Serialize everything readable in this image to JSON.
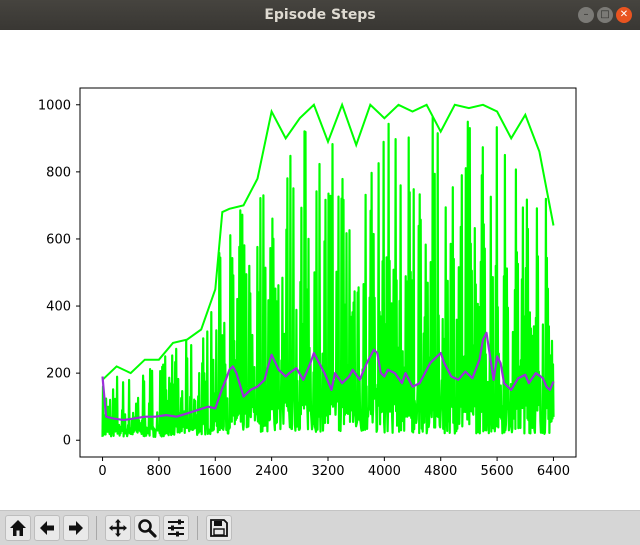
{
  "window": {
    "title": "Episode Steps",
    "controls": [
      "minimize-icon",
      "maximize-icon",
      "close-icon"
    ]
  },
  "toolbar": {
    "buttons": [
      "home-icon",
      "back-arrow-icon",
      "forward-arrow-icon",
      "pan-icon",
      "zoom-icon",
      "subplots-icon",
      "save-icon"
    ]
  },
  "colors": {
    "raw": "#00ff00",
    "mean": "#9b30d9"
  },
  "chart_data": {
    "type": "line",
    "xlim": [
      -320,
      6720
    ],
    "ylim": [
      -50,
      1050
    ],
    "xticks": [
      0,
      800,
      1600,
      2400,
      3200,
      4000,
      4800,
      5600,
      6400
    ],
    "yticks": [
      0,
      200,
      400,
      600,
      800,
      1000
    ],
    "grid": false,
    "series": [
      {
        "type": "area-band",
        "color": "#00ff00",
        "x": [
          0,
          200,
          400,
          600,
          800,
          1000,
          1200,
          1400,
          1600,
          1700,
          1800,
          2000,
          2200,
          2400,
          2600,
          2800,
          3000,
          3200,
          3400,
          3600,
          3800,
          4000,
          4200,
          4400,
          4600,
          4800,
          5000,
          5200,
          5400,
          5600,
          5800,
          6000,
          6200,
          6400
        ],
        "lower": [
          10,
          10,
          10,
          10,
          10,
          15,
          15,
          15,
          20,
          20,
          20,
          20,
          25,
          25,
          25,
          25,
          25,
          25,
          25,
          20,
          20,
          20,
          20,
          20,
          20,
          20,
          20,
          20,
          20,
          20,
          20,
          20,
          20,
          15
        ],
        "upper": [
          180,
          220,
          200,
          240,
          240,
          290,
          300,
          330,
          450,
          680,
          690,
          700,
          780,
          980,
          900,
          960,
          1000,
          890,
          1000,
          880,
          1000,
          960,
          1000,
          980,
          1000,
          920,
          1000,
          990,
          1000,
          980,
          900,
          970,
          860,
          640
        ]
      },
      {
        "color": "#9b30d9",
        "x": [
          0,
          50,
          150,
          300,
          450,
          600,
          750,
          900,
          1050,
          1200,
          1350,
          1500,
          1600,
          1700,
          1750,
          1800,
          1850,
          1900,
          2000,
          2100,
          2200,
          2300,
          2350,
          2400,
          2500,
          2600,
          2650,
          2750,
          2850,
          2950,
          3000,
          3050,
          3150,
          3250,
          3300,
          3400,
          3500,
          3550,
          3650,
          3750,
          3850,
          3900,
          3950,
          4000,
          4050,
          4150,
          4250,
          4300,
          4400,
          4500,
          4650,
          4800,
          4850,
          4950,
          5050,
          5150,
          5250,
          5350,
          5400,
          5450,
          5550,
          5600,
          5650,
          5700,
          5800,
          5900,
          6000,
          6050,
          6150,
          6250,
          6300,
          6350,
          6400
        ],
        "y": [
          190,
          70,
          65,
          60,
          65,
          70,
          70,
          75,
          70,
          80,
          90,
          100,
          95,
          155,
          180,
          210,
          220,
          200,
          130,
          150,
          160,
          180,
          220,
          255,
          210,
          190,
          200,
          215,
          180,
          230,
          260,
          240,
          200,
          150,
          200,
          170,
          190,
          210,
          180,
          230,
          270,
          260,
          200,
          190,
          210,
          200,
          170,
          200,
          160,
          170,
          230,
          260,
          230,
          190,
          180,
          205,
          185,
          240,
          300,
          320,
          180,
          250,
          230,
          170,
          150,
          185,
          195,
          170,
          200,
          185,
          160,
          150,
          175
        ]
      }
    ]
  }
}
